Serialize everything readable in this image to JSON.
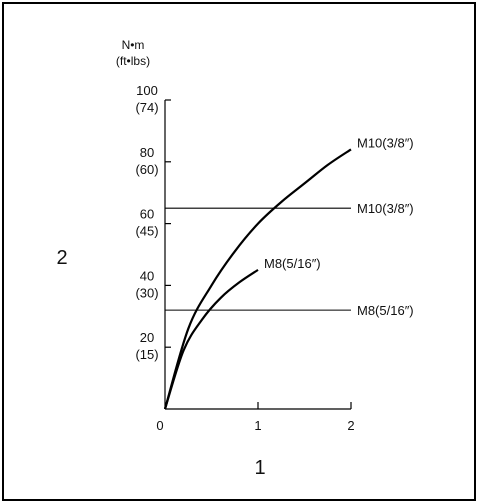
{
  "chart_data": {
    "type": "line",
    "title": "",
    "y_unit_label": [
      "N•m",
      "(ft•lbs)"
    ],
    "xlim": [
      0,
      2
    ],
    "ylim": [
      0,
      100
    ],
    "x_ticks": [
      {
        "value": 0,
        "label": "0"
      },
      {
        "value": 1,
        "label": "1"
      },
      {
        "value": 2,
        "label": "2"
      }
    ],
    "y_ticks": [
      {
        "value": 20,
        "label": "20",
        "sub": "(15)"
      },
      {
        "value": 40,
        "label": "40",
        "sub": "(30)"
      },
      {
        "value": 60,
        "label": "60",
        "sub": "(45)"
      },
      {
        "value": 80,
        "label": "80",
        "sub": "(60)"
      },
      {
        "value": 100,
        "label": "100",
        "sub": "(74)"
      }
    ],
    "curves": [
      {
        "label": "M10(3/8″)",
        "x": [
          0,
          0.25,
          0.5,
          0.75,
          1.0,
          1.25,
          1.5,
          1.75,
          2.0
        ],
        "y": [
          0,
          26,
          40,
          51,
          60,
          67,
          73,
          79,
          84
        ]
      },
      {
        "label": "M8(5/16″)",
        "x": [
          0,
          0.2,
          0.4,
          0.6,
          0.8,
          1.0
        ],
        "y": [
          0,
          19,
          29,
          36,
          41,
          45
        ]
      }
    ],
    "reference_lines": [
      {
        "label": "M10(3/8″)",
        "y": 65
      },
      {
        "label": "M8(5/16″)",
        "y": 32
      }
    ],
    "callouts": {
      "y_axis": "2",
      "x_axis": "1"
    }
  }
}
